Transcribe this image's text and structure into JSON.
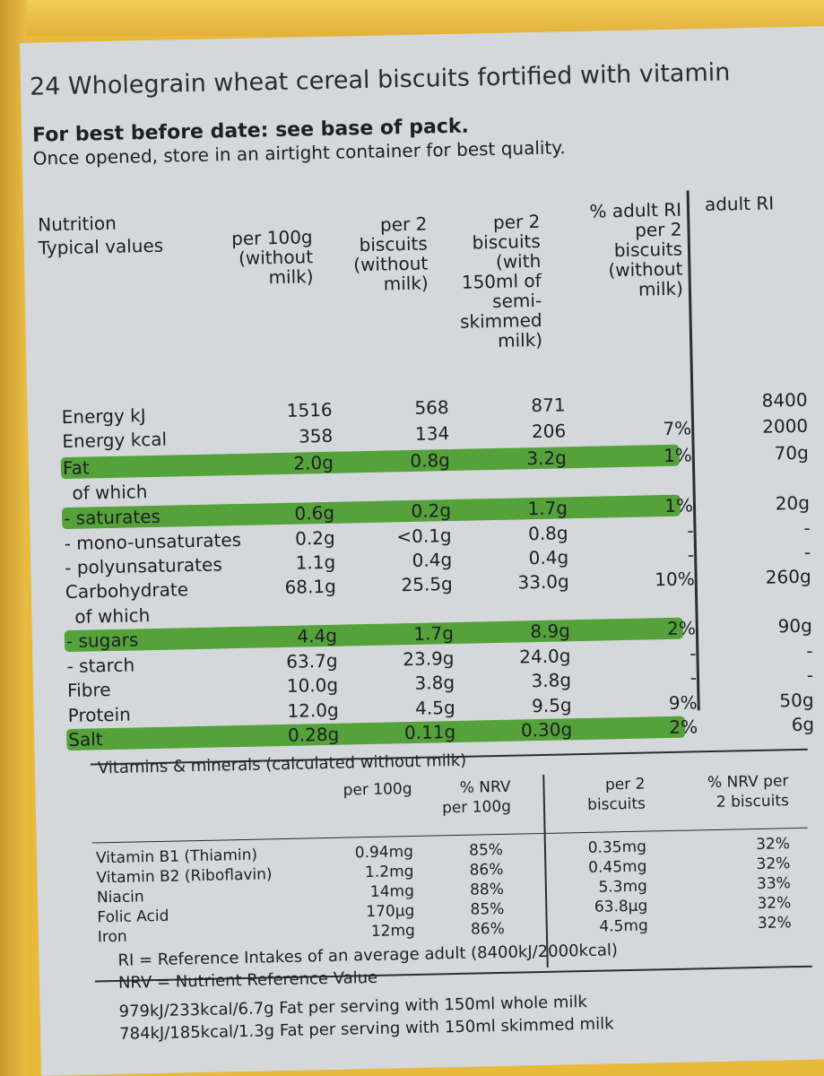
{
  "title": "24 Wholegrain wheat cereal biscuits fortified with vitamin",
  "best_before": "For best before date: see base of pack.",
  "storage": "Once opened, store in an airtight container for best quality.",
  "headers": {
    "label1": "Nutrition",
    "label2": "Typical values",
    "per100": "per 100g\n(without\nmilk)",
    "per2": "per 2\nbiscuits\n(without\nmilk)",
    "per2milk": "per 2\nbiscuits\n(with\n150ml of\nsemi-\nskimmed\nmilk)",
    "ri_pct": "% adult RI\nper 2\nbiscuits\n(without\nmilk)",
    "adult_ri": "adult RI"
  },
  "energy_kj_extra": {
    "per100": "1516",
    "per2": "568",
    "per2milk": "871",
    "ri": "8400"
  },
  "rows": [
    {
      "label": "Energy kJ",
      "per100": "1516",
      "per2": "568",
      "per2milk": "871",
      "pct": "",
      "ri": "8400"
    },
    {
      "label": "Energy kcal",
      "per100": "358",
      "per2": "134",
      "per2milk": "206",
      "pct": "7%",
      "ri": "2000"
    },
    {
      "label": "Fat",
      "per100": "2.0g",
      "per2": "0.8g",
      "per2milk": "3.2g",
      "pct": "1%",
      "ri": "70g"
    },
    {
      "label": "of which",
      "per100": "",
      "per2": "",
      "per2milk": "",
      "pct": "",
      "ri": ""
    },
    {
      "label": "- saturates",
      "per100": "0.6g",
      "per2": "0.2g",
      "per2milk": "1.7g",
      "pct": "1%",
      "ri": "20g"
    },
    {
      "label": "- mono-unsaturates",
      "per100": "0.2g",
      "per2": "<0.1g",
      "per2milk": "0.8g",
      "pct": "-",
      "ri": "-"
    },
    {
      "label": "- polyunsaturates",
      "per100": "1.1g",
      "per2": "0.4g",
      "per2milk": "0.4g",
      "pct": "-",
      "ri": "-"
    },
    {
      "label": "Carbohydrate",
      "per100": "68.1g",
      "per2": "25.5g",
      "per2milk": "33.0g",
      "pct": "10%",
      "ri": "260g"
    },
    {
      "label": "of which",
      "per100": "",
      "per2": "",
      "per2milk": "",
      "pct": "",
      "ri": ""
    },
    {
      "label": "- sugars",
      "per100": "4.4g",
      "per2": "1.7g",
      "per2milk": "8.9g",
      "pct": "2%",
      "ri": "90g"
    },
    {
      "label": "- starch",
      "per100": "63.7g",
      "per2": "23.9g",
      "per2milk": "24.0g",
      "pct": "-",
      "ri": "-"
    },
    {
      "label": "Fibre",
      "per100": "10.0g",
      "per2": "3.8g",
      "per2milk": "3.8g",
      "pct": "-",
      "ri": "-"
    },
    {
      "label": "Protein",
      "per100": "12.0g",
      "per2": "4.5g",
      "per2milk": "9.5g",
      "pct": "9%",
      "ri": "50g"
    },
    {
      "label": "Salt",
      "per100": "0.28g",
      "per2": "0.11g",
      "per2milk": "0.30g",
      "pct": "2%",
      "ri": "6g"
    }
  ],
  "vitamins": {
    "title": "Vitamins & minerals (calculated without milk)",
    "h_per100": "per 100g",
    "h_nrv100": "% NRV\nper 100g",
    "h_per2": "per 2\nbiscuits",
    "h_nrv2": "% NRV per\n2 biscuits",
    "rows": [
      {
        "name": "Vitamin B1 (Thiamin)",
        "per100": "0.94mg",
        "nrv100": "85%",
        "per2": "0.35mg",
        "nrv2": "32%"
      },
      {
        "name": "Vitamin B2 (Riboflavin)",
        "per100": "1.2mg",
        "nrv100": "86%",
        "per2": "0.45mg",
        "nrv2": "32%"
      },
      {
        "name": "Niacin",
        "per100": "14mg",
        "nrv100": "88%",
        "per2": "5.3mg",
        "nrv2": "33%"
      },
      {
        "name": "Folic Acid",
        "per100": "170µg",
        "nrv100": "85%",
        "per2": "63.8µg",
        "nrv2": "32%"
      },
      {
        "name": "Iron",
        "per100": "12mg",
        "nrv100": "86%",
        "per2": "4.5mg",
        "nrv2": "32%"
      }
    ]
  },
  "footnotes": [
    "RI = Reference Intakes of an average adult (8400kJ/2000kcal)",
    "NRV = Nutrient Reference Value",
    "979kJ/233kcal/6.7g Fat per serving with 150ml whole milk",
    "784kJ/185kcal/1.3g Fat per serving with 150ml skimmed milk"
  ],
  "colors": {
    "highlight": "#55a23b",
    "pack": "#e8b93a",
    "panel": "#d4d8da"
  }
}
